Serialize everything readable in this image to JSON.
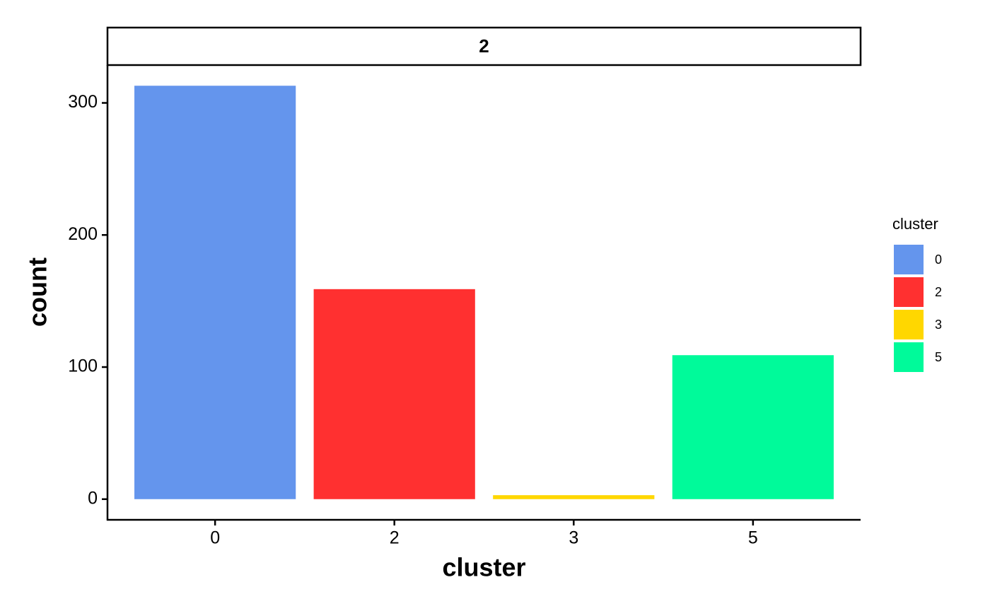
{
  "chart_data": {
    "type": "bar",
    "facet_label": "2",
    "x_label": "cluster",
    "y_label": "count",
    "legend_title": "cluster",
    "categories": [
      "0",
      "2",
      "3",
      "5"
    ],
    "values": [
      313,
      159,
      3,
      109
    ],
    "colors": [
      "#6495ed",
      "#ff3030",
      "#ffd700",
      "#00fa9a"
    ],
    "ylim": [
      -15.65,
      328.65
    ],
    "yticks": [
      0,
      100,
      200,
      300
    ],
    "grid": false
  }
}
